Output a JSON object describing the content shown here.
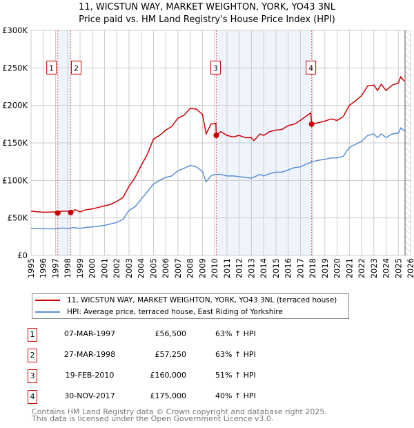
{
  "chart_data": {
    "type": "line",
    "title": "11, WICSTUN WAY, MARKET WEIGHTON, YORK, YO43 3NL",
    "subtitle": "Price paid vs. HM Land Registry's House Price Index (HPI)",
    "xlim": [
      1995,
      2026
    ],
    "ylim": [
      0,
      300000
    ],
    "y_ticks": [
      {
        "v": 0,
        "label": "£0"
      },
      {
        "v": 50000,
        "label": "£50K"
      },
      {
        "v": 100000,
        "label": "£100K"
      },
      {
        "v": 150000,
        "label": "£150K"
      },
      {
        "v": 200000,
        "label": "£200K"
      },
      {
        "v": 250000,
        "label": "£250K"
      },
      {
        "v": 300000,
        "label": "£300K"
      }
    ],
    "x_ticks": [
      "1995",
      "1996",
      "1997",
      "1998",
      "1999",
      "2000",
      "2001",
      "2002",
      "2003",
      "2004",
      "2005",
      "2006",
      "2007",
      "2008",
      "2009",
      "2010",
      "2011",
      "2012",
      "2013",
      "2014",
      "2015",
      "2016",
      "2017",
      "2018",
      "2019",
      "2020",
      "2021",
      "2022",
      "2023",
      "2024",
      "2025",
      "2026"
    ],
    "grid": true,
    "shaded_ranges": [
      [
        1997.18,
        1998.24
      ],
      [
        2010.13,
        2017.92
      ]
    ],
    "hatched_after": 2025.55,
    "series": [
      {
        "name": "11, WICSTUN WAY, MARKET WEIGHTON, YORK, YO43 3NL (terraced house)",
        "color": "#cc0000",
        "x": [
          1995,
          1996,
          1997,
          1997.18,
          1997.5,
          1998,
          1998.24,
          1998.6,
          1999,
          1999.5,
          2000,
          2000.5,
          2001,
          2001.5,
          2002,
          2002.5,
          2003,
          2003.5,
          2004,
          2004.5,
          2005,
          2005.5,
          2006,
          2006.5,
          2007,
          2007.5,
          2008,
          2008.5,
          2009,
          2009.3,
          2009.7,
          2010.1,
          2010.13,
          2010.5,
          2011,
          2011.5,
          2012,
          2012.5,
          2013,
          2013.2,
          2013.7,
          2014,
          2014.5,
          2015,
          2015.5,
          2016,
          2016.5,
          2017,
          2017.5,
          2017.85,
          2017.92,
          2018.5,
          2019,
          2019.5,
          2020,
          2020.5,
          2021,
          2021.5,
          2022,
          2022.5,
          2023,
          2023.3,
          2023.6,
          2024,
          2024.5,
          2025,
          2025.2,
          2025.5
        ],
        "y": [
          59000,
          57500,
          58000,
          56500,
          59000,
          59000,
          57250,
          61000,
          58000,
          61000,
          62000,
          64000,
          66000,
          68000,
          72000,
          77000,
          92000,
          104000,
          120000,
          135000,
          155000,
          160000,
          167000,
          172000,
          183000,
          187000,
          196000,
          195000,
          188000,
          162000,
          175000,
          176000,
          160000,
          165000,
          160000,
          158000,
          160000,
          157000,
          157000,
          153000,
          162000,
          160000,
          165000,
          167000,
          168000,
          173000,
          175000,
          180000,
          186000,
          190000,
          175000,
          177000,
          179000,
          182000,
          180000,
          185000,
          200000,
          206000,
          213000,
          226000,
          227000,
          220000,
          228000,
          220000,
          227000,
          230000,
          238000,
          232000
        ]
      },
      {
        "name": "HPI: Average price, terraced house, East Riding of Yorkshire",
        "color": "#5b8fd6",
        "x": [
          1995,
          1996,
          1997,
          1997.5,
          1998,
          1998.5,
          1999,
          1999.5,
          2000,
          2000.5,
          2001,
          2001.5,
          2002,
          2002.5,
          2003,
          2003.5,
          2004,
          2004.5,
          2005,
          2005.5,
          2006,
          2006.5,
          2007,
          2007.5,
          2008,
          2008.5,
          2009,
          2009.3,
          2009.7,
          2010,
          2010.5,
          2011,
          2011.5,
          2012,
          2012.5,
          2013,
          2013.7,
          2014,
          2014.5,
          2015,
          2015.5,
          2016,
          2016.5,
          2017,
          2017.5,
          2018,
          2018.5,
          2019,
          2019.5,
          2020,
          2020.5,
          2021,
          2021.5,
          2022,
          2022.5,
          2023,
          2023.3,
          2023.6,
          2024,
          2024.5,
          2025,
          2025.2,
          2025.5
        ],
        "y": [
          36000,
          35500,
          35500,
          36500,
          36000,
          37000,
          36000,
          37500,
          38000,
          39000,
          40000,
          42000,
          44000,
          48000,
          60000,
          65000,
          75000,
          85000,
          95000,
          100000,
          104000,
          106000,
          113000,
          116000,
          120000,
          118000,
          112000,
          98000,
          106000,
          108000,
          108000,
          106000,
          106000,
          105000,
          104000,
          103000,
          108000,
          106000,
          109000,
          111000,
          111000,
          114000,
          117000,
          118000,
          122000,
          125000,
          127000,
          128000,
          130000,
          130000,
          132000,
          144000,
          148000,
          152000,
          160000,
          162000,
          157000,
          162000,
          157000,
          162000,
          163000,
          170000,
          166000
        ]
      }
    ],
    "sales": [
      {
        "n": "1",
        "x": 1997.18,
        "y": 56500
      },
      {
        "n": "2",
        "x": 1998.24,
        "y": 57250
      },
      {
        "n": "3",
        "x": 2010.13,
        "y": 160000
      },
      {
        "n": "4",
        "x": 2017.92,
        "y": 175000
      }
    ],
    "marker_label_y": 250000
  },
  "legend": {
    "property": "11, WICSTUN WAY, MARKET WEIGHTON, YORK, YO43 3NL (terraced house)",
    "hpi": "HPI: Average price, terraced house, East Riding of Yorkshire"
  },
  "transactions": [
    {
      "n": "1",
      "date": "07-MAR-1997",
      "price": "£56,500",
      "hpi": "63% ↑ HPI"
    },
    {
      "n": "2",
      "date": "27-MAR-1998",
      "price": "£57,250",
      "hpi": "63% ↑ HPI"
    },
    {
      "n": "3",
      "date": "19-FEB-2010",
      "price": "£160,000",
      "hpi": "51% ↑ HPI"
    },
    {
      "n": "4",
      "date": "30-NOV-2017",
      "price": "£175,000",
      "hpi": "40% ↑ HPI"
    }
  ],
  "footer": {
    "line1": "Contains HM Land Registry data © Crown copyright and database right 2025.",
    "line2": "This data is licensed under the Open Government Licence v3.0."
  }
}
